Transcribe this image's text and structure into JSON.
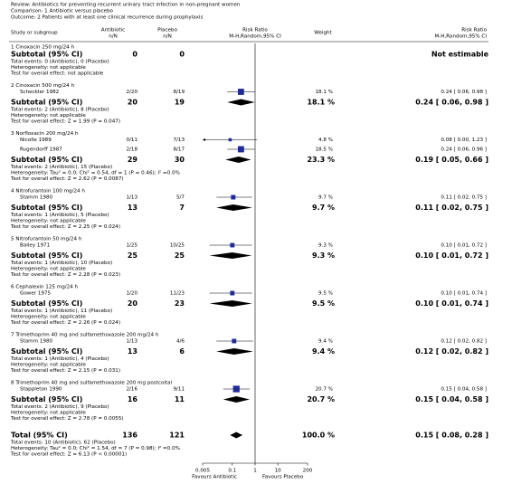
{
  "header": {
    "review": "Review:  Antibiotics for preventing recurrent urinary tract infection in non-pregnant women",
    "comparison": "Comparison:  1 Antibiotic versus placebo",
    "outcome": "Outcome:  2 Patients with at least one clinical recurrence during prophylaxis"
  },
  "columns": {
    "study": "Study or subgroup",
    "antibiotic": [
      "Antibiotic",
      "n/N"
    ],
    "placebo": [
      "Placebo",
      "n/N"
    ],
    "plot": [
      "Risk Ratio",
      "M-H,Random,95% CI"
    ],
    "weight": "Weight",
    "result": [
      "Risk Ratio",
      "M-H,Random,95% CI"
    ]
  },
  "groups": [
    {
      "label": "1 Cinoxacin 250 mg/24 h",
      "studies": [],
      "subtotal": {
        "label": "Subtotal (95% CI)",
        "antibiotic": 0,
        "placebo": 0,
        "rr_label": "Not estimable"
      },
      "events": "Total events: 0 (Antibiotic), 0 (Placebo)",
      "heterogeneity": "Heterogeneity: not applicable",
      "test": "Test for overall effect: not applicable"
    },
    {
      "label": "2 Cinoxacin 500 mg/24 h",
      "studies": [
        {
          "name": "Scheckler 1982",
          "antibiotic": "2/20",
          "placebo": "8/19",
          "weight": 18.1,
          "weight_label": "18.1 %",
          "rr": 0.24,
          "ci": [
            0.06,
            0.98
          ],
          "rr_label": "0.24 [ 0.06, 0.98 ]"
        }
      ],
      "subtotal": {
        "label": "Subtotal (95% CI)",
        "antibiotic": 20,
        "placebo": 19,
        "weight": 18.1,
        "weight_label": "18.1 %",
        "rr": 0.24,
        "ci": [
          0.06,
          0.98
        ],
        "rr_label": "0.24 [ 0.06, 0.98 ]"
      },
      "events": "Total events: 2 (Antibiotic), 8 (Placebo)",
      "heterogeneity": "Heterogeneity: not applicable",
      "test": "Test for overall effect: Z = 1.99 (P = 0.047)"
    },
    {
      "label": "3 Norfloxacin 200 mg/24 h",
      "studies": [
        {
          "name": "Nicolle 1989",
          "antibiotic": "0/11",
          "placebo": "7/13",
          "weight": 4.8,
          "weight_label": "4.8 %",
          "rr": 0.08,
          "ci": [
            0.0,
            1.23
          ],
          "rr_label": "0.08 [ 0.00, 1.23 ]"
        },
        {
          "name": "Rugendorff 1987",
          "antibiotic": "2/18",
          "placebo": "8/17",
          "weight": 18.5,
          "weight_label": "18.5 %",
          "rr": 0.24,
          "ci": [
            0.06,
            0.96
          ],
          "rr_label": "0.24 [ 0.06, 0.96 ]"
        }
      ],
      "subtotal": {
        "label": "Subtotal (95% CI)",
        "antibiotic": 29,
        "placebo": 30,
        "weight": 23.3,
        "weight_label": "23.3 %",
        "rr": 0.19,
        "ci": [
          0.05,
          0.66
        ],
        "rr_label": "0.19 [ 0.05, 0.66 ]"
      },
      "events": "Total events: 2 (Antibiotic), 15 (Placebo)",
      "heterogeneity": "Heterogeneity: Tau² = 0.0; Chi² = 0.54, df = 1 (P = 0.46); I² =0.0%",
      "test": "Test for overall effect: Z = 2.62 (P = 0.0087)"
    },
    {
      "label": "4 Nitrofurantoin 100 mg/24 h",
      "studies": [
        {
          "name": "Stamm 1980",
          "antibiotic": "1/13",
          "placebo": "5/7",
          "weight": 9.7,
          "weight_label": "9.7 %",
          "rr": 0.11,
          "ci": [
            0.02,
            0.75
          ],
          "rr_label": "0.11 [ 0.02, 0.75 ]"
        }
      ],
      "subtotal": {
        "label": "Subtotal (95% CI)",
        "antibiotic": 13,
        "placebo": 7,
        "weight": 9.7,
        "weight_label": "9.7 %",
        "rr": 0.11,
        "ci": [
          0.02,
          0.75
        ],
        "rr_label": "0.11 [ 0.02, 0.75 ]"
      },
      "events": "Total events: 1 (Antibiotic), 5 (Placebo)",
      "heterogeneity": "Heterogeneity: not applicable",
      "test": "Test for overall effect: Z = 2.25 (P = 0.024)"
    },
    {
      "label": "5 Nitrofurantoin 50 mg/24 h",
      "studies": [
        {
          "name": "Bailey 1971",
          "antibiotic": "1/25",
          "placebo": "10/25",
          "weight": 9.3,
          "weight_label": "9.3 %",
          "rr": 0.1,
          "ci": [
            0.01,
            0.72
          ],
          "rr_label": "0.10 [ 0.01, 0.72 ]"
        }
      ],
      "subtotal": {
        "label": "Subtotal (95% CI)",
        "antibiotic": 25,
        "placebo": 25,
        "weight": 9.3,
        "weight_label": "9.3 %",
        "rr": 0.1,
        "ci": [
          0.01,
          0.72
        ],
        "rr_label": "0.10 [ 0.01, 0.72 ]"
      },
      "events": "Total events: 1 (Antibiotic), 10 (Placebo)",
      "heterogeneity": "Heterogeneity: not applicable",
      "test": "Test for overall effect: Z = 2.28 (P = 0.023)"
    },
    {
      "label": "6 Cephalexin 125 mg/24 h",
      "studies": [
        {
          "name": "Gower 1975",
          "antibiotic": "1/20",
          "placebo": "11/23",
          "weight": 9.5,
          "weight_label": "9.5 %",
          "rr": 0.1,
          "ci": [
            0.01,
            0.74
          ],
          "rr_label": "0.10 [ 0.01, 0.74 ]"
        }
      ],
      "subtotal": {
        "label": "Subtotal (95% CI)",
        "antibiotic": 20,
        "placebo": 23,
        "weight": 9.5,
        "weight_label": "9.5 %",
        "rr": 0.1,
        "ci": [
          0.01,
          0.74
        ],
        "rr_label": "0.10 [ 0.01, 0.74 ]"
      },
      "events": "Total events: 1 (Antibiotic), 11 (Placebo)",
      "heterogeneity": "Heterogeneity: not applicable",
      "test": "Test for overall effect: Z = 2.26 (P = 0.024)"
    },
    {
      "label": "7 Trimethoprim 40 mg and sulfamethoxazole 200 mg/24 h",
      "studies": [
        {
          "name": "Stamm 1980",
          "antibiotic": "1/13",
          "placebo": "4/6",
          "weight": 9.4,
          "weight_label": "9.4 %",
          "rr": 0.12,
          "ci": [
            0.02,
            0.82
          ],
          "rr_label": "0.12 [ 0.02, 0.82 ]"
        }
      ],
      "subtotal": {
        "label": "Subtotal (95% CI)",
        "antibiotic": 13,
        "placebo": 6,
        "weight": 9.4,
        "weight_label": "9.4 %",
        "rr": 0.12,
        "ci": [
          0.02,
          0.82
        ],
        "rr_label": "0.12 [ 0.02, 0.82 ]"
      },
      "events": "Total events: 1 (Antibiotic), 4 (Placebo)",
      "heterogeneity": "Heterogeneity: not applicable",
      "test": "Test for overall effect: Z = 2.15 (P = 0.031)"
    },
    {
      "label": "8 Trimethoprim 40 mg and sulfamethoxazole 200 mg postcoital",
      "studies": [
        {
          "name": "Stappleton 1990",
          "antibiotic": "2/16",
          "placebo": "9/11",
          "weight": 20.7,
          "weight_label": "20.7 %",
          "rr": 0.15,
          "ci": [
            0.04,
            0.58
          ],
          "rr_label": "0.15 [ 0.04, 0.58 ]"
        }
      ],
      "subtotal": {
        "label": "Subtotal (95% CI)",
        "antibiotic": 16,
        "placebo": 11,
        "weight": 20.7,
        "weight_label": "20.7 %",
        "rr": 0.15,
        "ci": [
          0.04,
          0.58
        ],
        "rr_label": "0.15 [ 0.04, 0.58 ]"
      },
      "events": "Total events: 2 (Antibiotic), 9 (Placebo)",
      "heterogeneity": "Heterogeneity: not applicable",
      "test": "Test for overall effect: Z = 2.78 (P = 0.0055)"
    }
  ],
  "total": {
    "label": "Total (95% CI)",
    "antibiotic": 136,
    "placebo": 121,
    "weight": 100.0,
    "weight_label": "100.0 %",
    "rr": 0.15,
    "ci": [
      0.08,
      0.28
    ],
    "rr_label": "0.15 [ 0.08, 0.28 ]",
    "events": "Total events: 10 (Antibiotic), 62 (Placebo)",
    "heterogeneity": "Heterogeneity: Tau² = 0.0; Chi² = 1.54, df = 7 (P = 0.98); I² =0.0%",
    "test": "Test for overall effect: Z = 6.13 (P < 0.00001)"
  },
  "axis": {
    "scale": "log",
    "xlim": [
      0.005,
      200
    ],
    "xticks": [
      0.005,
      0.1,
      1,
      10,
      200
    ],
    "left_label": "Favours Antibiotic",
    "right_label": "Favours Placebo",
    "marker_color": "#1f2b9c"
  }
}
